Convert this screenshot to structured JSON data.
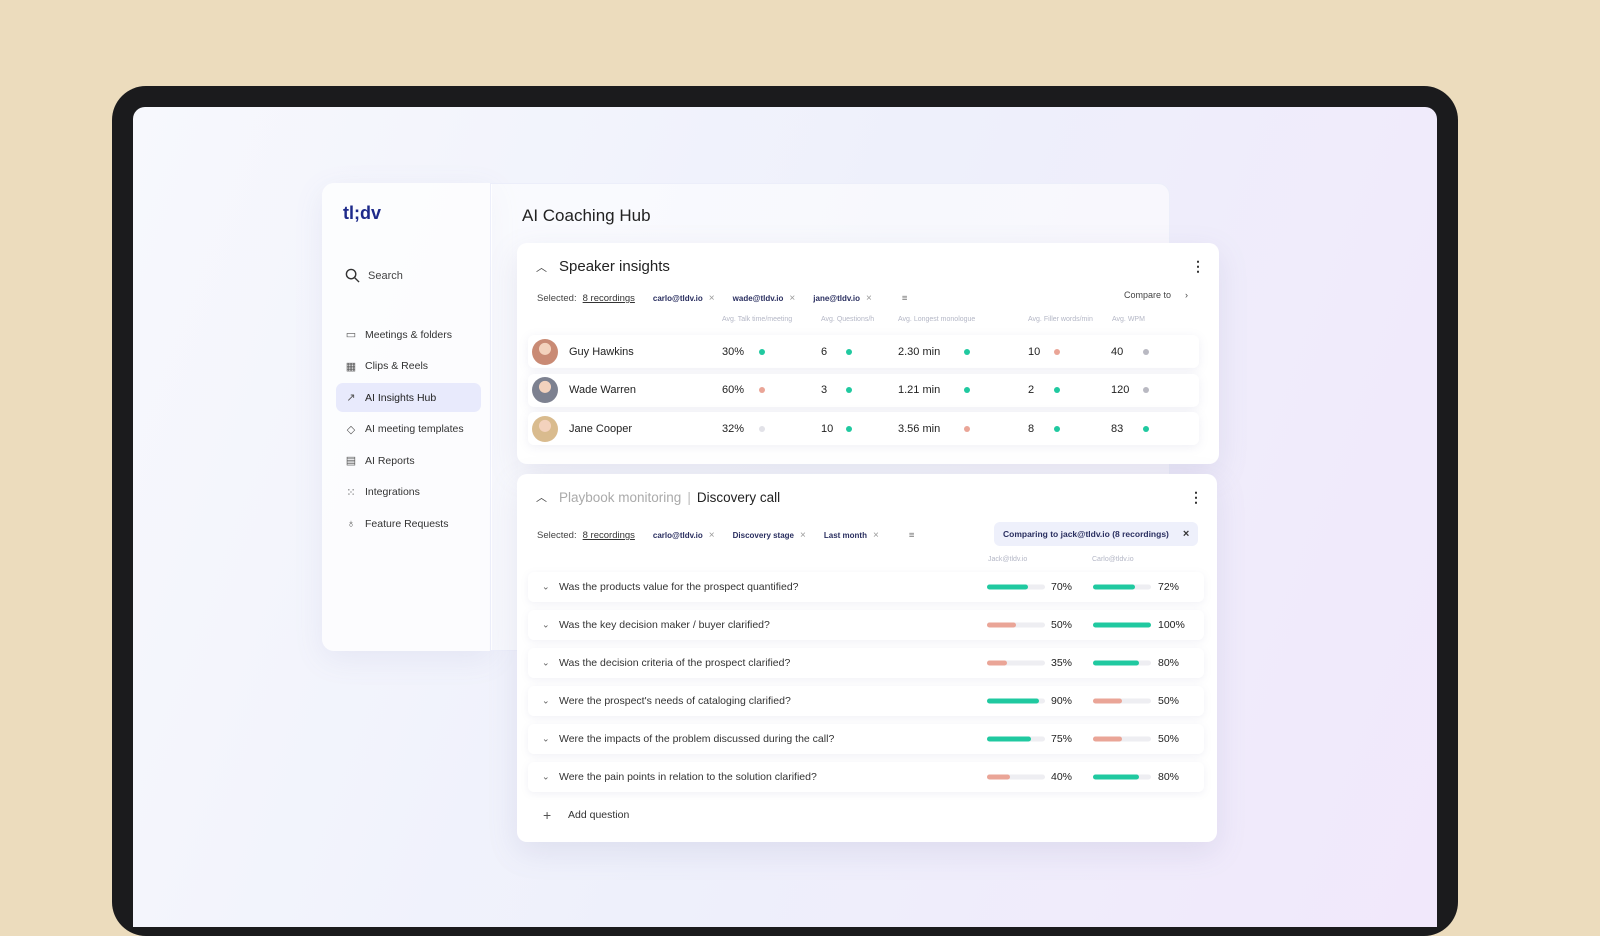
{
  "app": {
    "logo": "tl;dv",
    "page_title": "AI Coaching Hub"
  },
  "sidebar": {
    "search": "Search",
    "items": [
      {
        "label": "Meetings & folders",
        "icon": "video-icon",
        "glyph": "▭"
      },
      {
        "label": "Clips & Reels",
        "icon": "clapper-icon",
        "glyph": "▦"
      },
      {
        "label": "AI Insights Hub",
        "icon": "trend-icon",
        "glyph": "↗",
        "active": true
      },
      {
        "label": "AI meeting templates",
        "icon": "tag-icon",
        "glyph": "◇"
      },
      {
        "label": "AI Reports",
        "icon": "report-icon",
        "glyph": "▤"
      },
      {
        "label": "Integrations",
        "icon": "grid-icon",
        "glyph": "⁙"
      },
      {
        "label": "Feature Requests",
        "icon": "bulb-icon",
        "glyph": "♁"
      }
    ]
  },
  "colors": {
    "green": "#20c9a0",
    "pink": "#eaa597",
    "gray": "#b9b9c2",
    "light": "#e2e2e8"
  },
  "speaker": {
    "title": "Speaker insights",
    "selected_label": "Selected:",
    "selected_value": "8 recordings",
    "chips": [
      "carlo@tldv.io",
      "wade@tldv.io",
      "jane@tldv.io"
    ],
    "compare": "Compare to",
    "columns": [
      "Avg. Talk time/meeting",
      "Avg. Questions/h",
      "Avg. Longest monologue",
      "Avg. Filler words/min",
      "Avg. WPM"
    ],
    "rows": [
      {
        "name": "Guy Hawkins",
        "avatar": "#c98a74",
        "values": [
          "30%",
          "6",
          "2.30 min",
          "10",
          "40"
        ],
        "status": [
          "green",
          "green",
          "green",
          "pink",
          "gray"
        ]
      },
      {
        "name": "Wade Warren",
        "avatar": "#7d8190",
        "values": [
          "60%",
          "3",
          "1.21 min",
          "2",
          "120"
        ],
        "status": [
          "pink",
          "green",
          "green",
          "green",
          "gray"
        ]
      },
      {
        "name": "Jane Cooper",
        "avatar": "#d9bb8e",
        "values": [
          "32%",
          "10",
          "3.56 min",
          "8",
          "83"
        ],
        "status": [
          "light",
          "green",
          "pink",
          "green",
          "green"
        ]
      }
    ]
  },
  "playbook": {
    "title_muted": "Playbook monitoring",
    "separator": "|",
    "title": "Discovery call",
    "selected_label": "Selected:",
    "selected_value": "8 recordings",
    "chips": [
      "carlo@tldv.io",
      "Discovery stage",
      "Last month"
    ],
    "comparing": "Comparing to jack@tldv.io (8 recordings)",
    "columns": [
      "Jack@tldv.io",
      "Carlo@tldv.io"
    ],
    "questions": [
      {
        "text": "Was the products value for the prospect quantified?",
        "a": 70,
        "a_label": "70%",
        "b": 72,
        "b_label": "72%"
      },
      {
        "text": "Was the key decision maker / buyer clarified?",
        "a": 50,
        "a_label": "50%",
        "b": 100,
        "b_label": "100%"
      },
      {
        "text": "Was the decision criteria of the prospect clarified?",
        "a": 35,
        "a_label": "35%",
        "b": 80,
        "b_label": "80%"
      },
      {
        "text": "Were the prospect's needs of cataloging clarified?",
        "a": 90,
        "a_label": "90%",
        "b": 50,
        "b_label": "50%"
      },
      {
        "text": "Were the impacts of the problem discussed during the call?",
        "a": 75,
        "a_label": "75%",
        "b": 50,
        "b_label": "50%"
      },
      {
        "text": "Were the pain points in relation to the solution clarified?",
        "a": 40,
        "a_label": "40%",
        "b": 80,
        "b_label": "80%"
      }
    ],
    "add_question": "Add question"
  }
}
